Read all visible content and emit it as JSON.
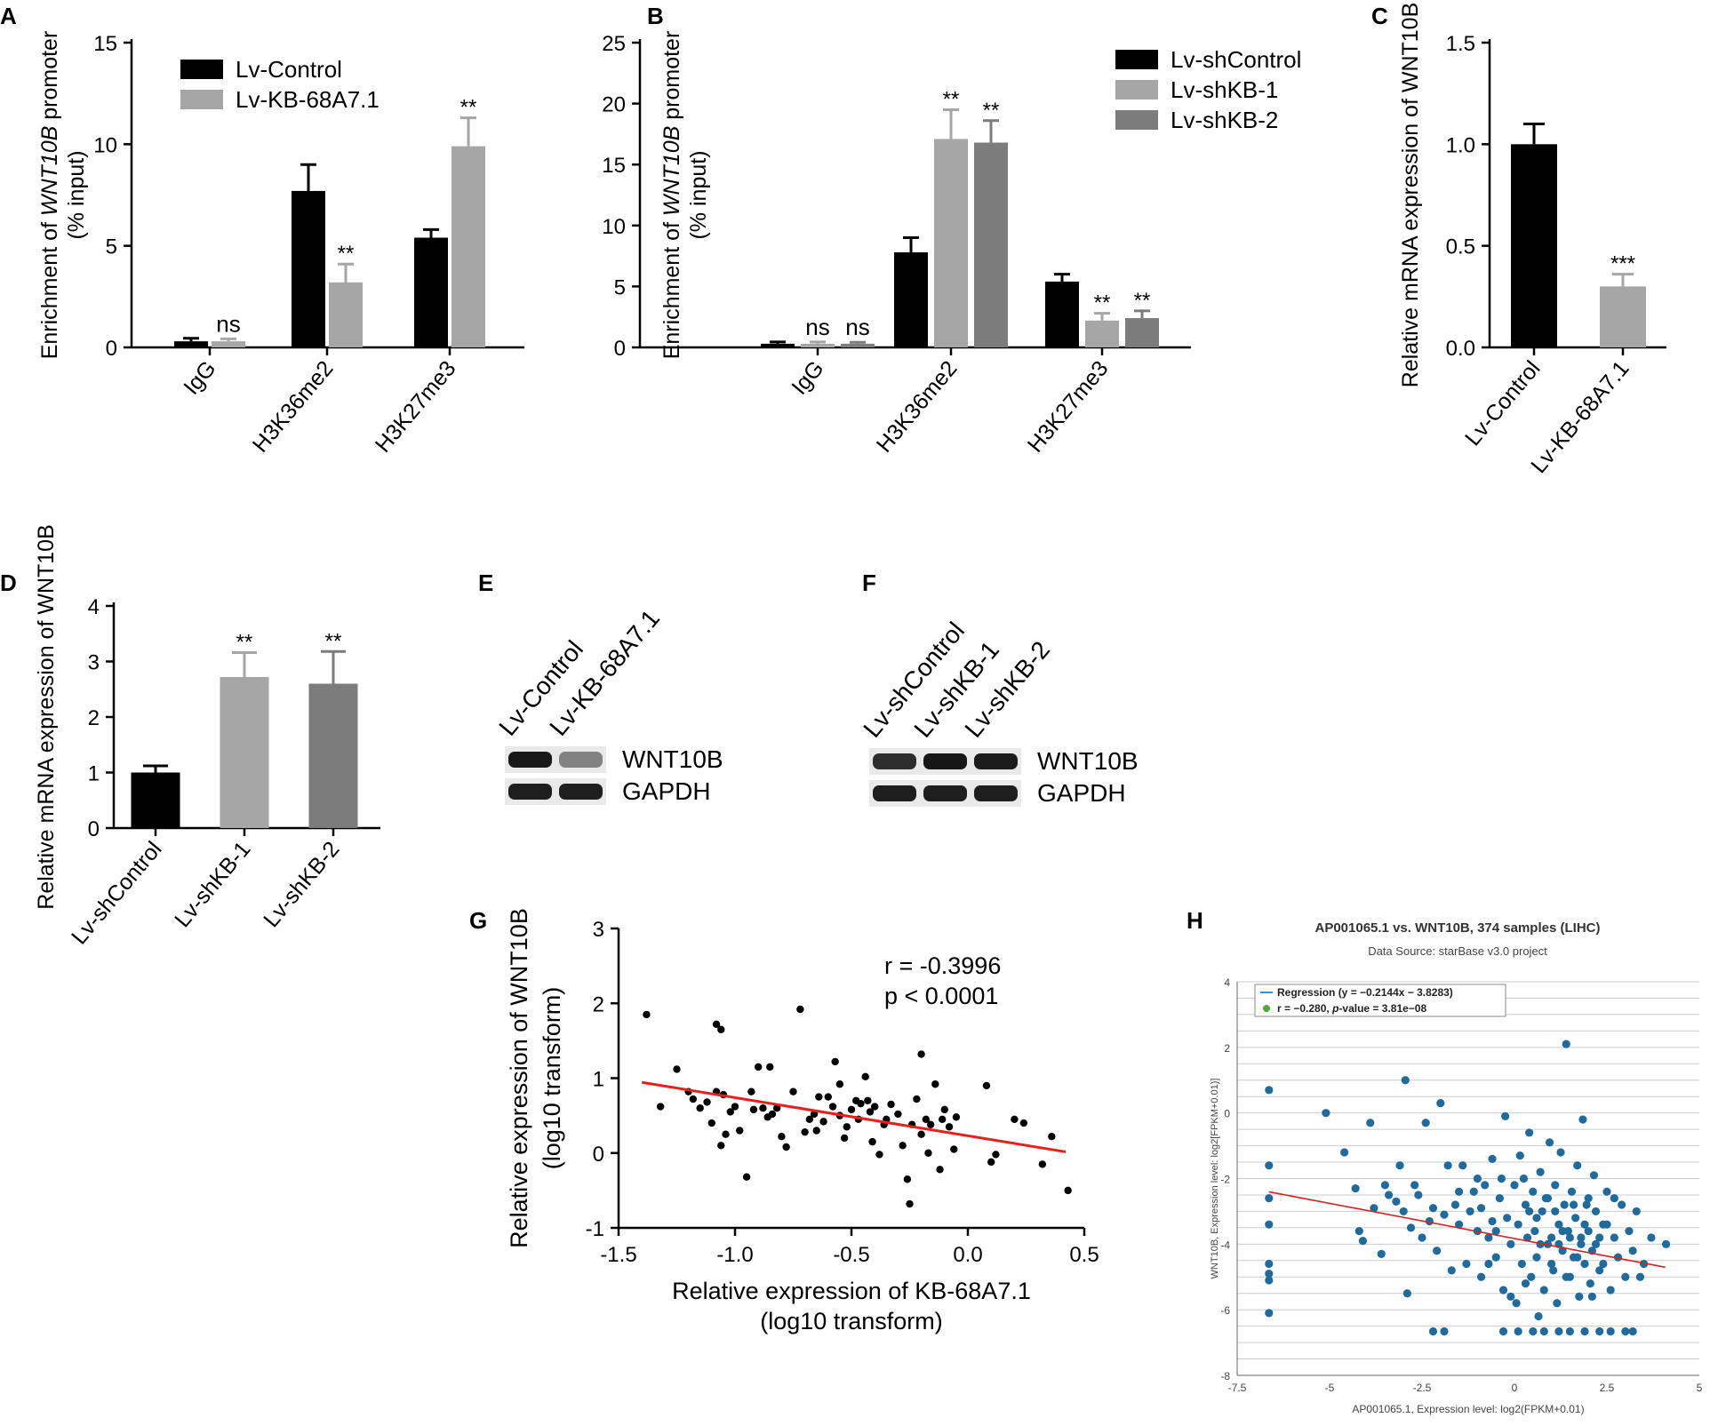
{
  "panels": {
    "A": "A",
    "B": "B",
    "C": "C",
    "D": "D",
    "E": "E",
    "F": "F",
    "G": "G",
    "H": "H"
  },
  "colors": {
    "black": "#000000",
    "light_gray": "#a6a6a6",
    "mid_gray": "#7c7c7c",
    "red": "#e8201a",
    "blue_dot": "#1f6b9e",
    "reg_line": "#d62220",
    "legend_blue": "#3a8fd6",
    "legend_green": "#4cae32",
    "h_grid": "#c9ccd2",
    "h_bg": "#ffffff"
  },
  "chart_data": [
    {
      "id": "A",
      "type": "bar",
      "ylabel_pre": "Enrichment of ",
      "ylabel_italic": "WNT10B",
      "ylabel_post": " promoter",
      "ylabel2": "(% input)",
      "yticks": [
        "0",
        "5",
        "10",
        "15"
      ],
      "ylim": [
        0,
        15
      ],
      "categories": [
        "IgG",
        "H3K36me2",
        "H3K27me3"
      ],
      "series": [
        {
          "name": "Lv-Control",
          "color": "#000000",
          "values": [
            0.3,
            7.7,
            5.4
          ],
          "errors": [
            0.15,
            1.3,
            0.4
          ],
          "labels": [
            "",
            "",
            ""
          ]
        },
        {
          "name": "Lv-KB-68A7.1",
          "color": "#a6a6a6",
          "values": [
            0.3,
            3.2,
            9.9
          ],
          "errors": [
            0.12,
            0.9,
            1.4
          ],
          "labels": [
            "ns",
            "**",
            "**"
          ]
        }
      ]
    },
    {
      "id": "B",
      "type": "bar",
      "ylabel_pre": "Enrichment of ",
      "ylabel_italic": "WNT10B",
      "ylabel_post": " promoter",
      "ylabel2": "(% input)",
      "yticks": [
        "0",
        "5",
        "10",
        "15",
        "20",
        "25"
      ],
      "ylim": [
        0,
        25
      ],
      "categories": [
        "IgG",
        "H3K36me2",
        "H3K27me3"
      ],
      "series": [
        {
          "name": "Lv-shControl",
          "color": "#000000",
          "values": [
            0.3,
            7.8,
            5.4
          ],
          "errors": [
            0.15,
            1.2,
            0.6
          ],
          "labels": [
            "",
            "",
            ""
          ]
        },
        {
          "name": "Lv-shKB-1",
          "color": "#a6a6a6",
          "values": [
            0.3,
            17.1,
            2.2
          ],
          "errors": [
            0.15,
            2.4,
            0.6
          ],
          "labels": [
            "ns",
            "**",
            "**"
          ]
        },
        {
          "name": "Lv-shKB-2",
          "color": "#7c7c7c",
          "values": [
            0.3,
            16.8,
            2.4
          ],
          "errors": [
            0.12,
            1.8,
            0.6
          ],
          "labels": [
            "ns",
            "**",
            "**"
          ]
        }
      ]
    },
    {
      "id": "C",
      "type": "bar",
      "ylabel": "Relative mRNA expression of WNT10B",
      "yticks": [
        "0.0",
        "0.5",
        "1.0",
        "1.5"
      ],
      "ylim": [
        0,
        1.5
      ],
      "categories": [
        "Lv-Control",
        "Lv-KB-68A7.1"
      ],
      "values": [
        1.0,
        0.3
      ],
      "errors": [
        0.1,
        0.06
      ],
      "colors": [
        "#000000",
        "#a6a6a6"
      ],
      "labels": [
        "",
        "***"
      ]
    },
    {
      "id": "D",
      "type": "bar",
      "ylabel": "Relative mRNA expression of WNT10B",
      "yticks": [
        "0",
        "1",
        "2",
        "3",
        "4"
      ],
      "ylim": [
        0,
        4
      ],
      "categories": [
        "Lv-shControl",
        "Lv-shKB-1",
        "Lv-shKB-2"
      ],
      "values": [
        1.0,
        2.72,
        2.6
      ],
      "errors": [
        0.12,
        0.44,
        0.58
      ],
      "colors": [
        "#000000",
        "#a6a6a6",
        "#7c7c7c"
      ],
      "labels": [
        "",
        "**",
        "**"
      ]
    },
    {
      "id": "G",
      "type": "scatter",
      "xlabel": "Relative expression of KB-68A7.1",
      "xlabel2": "(log10 transform)",
      "ylabel": "Relative expression of WNT10B",
      "ylabel2": "(log10 transform)",
      "xticks": [
        "-1.5",
        "-1.0",
        "-0.5",
        "0.0",
        "0.5"
      ],
      "xlim": [
        -1.5,
        0.5
      ],
      "yticks": [
        "-1",
        "0",
        "1",
        "2",
        "3"
      ],
      "ylim": [
        -1,
        3
      ],
      "annotation1": "r = -0.3996",
      "annotation2": "p < 0.0001",
      "regression": {
        "slope": -0.51,
        "intercept": 0.23,
        "x_range": [
          -1.4,
          0.42
        ]
      },
      "points": [
        [
          -1.38,
          1.85
        ],
        [
          -1.32,
          0.62
        ],
        [
          -1.25,
          1.12
        ],
        [
          -1.2,
          0.82
        ],
        [
          -1.18,
          0.72
        ],
        [
          -1.15,
          0.6
        ],
        [
          -1.12,
          0.68
        ],
        [
          -1.1,
          0.4
        ],
        [
          -1.08,
          1.72
        ],
        [
          -1.08,
          0.82
        ],
        [
          -1.06,
          1.65
        ],
        [
          -1.06,
          0.1
        ],
        [
          -1.05,
          0.78
        ],
        [
          -1.04,
          0.25
        ],
        [
          -1.02,
          0.55
        ],
        [
          -1.0,
          0.62
        ],
        [
          -0.98,
          0.3
        ],
        [
          -0.95,
          -0.32
        ],
        [
          -0.93,
          0.82
        ],
        [
          -0.92,
          0.58
        ],
        [
          -0.9,
          1.15
        ],
        [
          -0.88,
          0.6
        ],
        [
          -0.86,
          0.48
        ],
        [
          -0.85,
          1.15
        ],
        [
          -0.84,
          0.52
        ],
        [
          -0.82,
          0.6
        ],
        [
          -0.8,
          0.22
        ],
        [
          -0.78,
          0.08
        ],
        [
          -0.75,
          0.82
        ],
        [
          -0.72,
          1.92
        ],
        [
          -0.7,
          0.28
        ],
        [
          -0.68,
          0.45
        ],
        [
          -0.66,
          0.52
        ],
        [
          -0.65,
          0.3
        ],
        [
          -0.64,
          0.75
        ],
        [
          -0.62,
          0.42
        ],
        [
          -0.6,
          0.75
        ],
        [
          -0.58,
          0.62
        ],
        [
          -0.57,
          1.22
        ],
        [
          -0.55,
          0.92
        ],
        [
          -0.55,
          0.5
        ],
        [
          -0.53,
          0.2
        ],
        [
          -0.52,
          0.35
        ],
        [
          -0.5,
          0.58
        ],
        [
          -0.48,
          0.7
        ],
        [
          -0.47,
          0.45
        ],
        [
          -0.46,
          0.66
        ],
        [
          -0.44,
          1.02
        ],
        [
          -0.43,
          0.7
        ],
        [
          -0.42,
          0.55
        ],
        [
          -0.41,
          0.15
        ],
        [
          -0.4,
          0.62
        ],
        [
          -0.38,
          -0.02
        ],
        [
          -0.36,
          0.38
        ],
        [
          -0.35,
          0.45
        ],
        [
          -0.33,
          0.65
        ],
        [
          -0.3,
          0.52
        ],
        [
          -0.28,
          0.1
        ],
        [
          -0.26,
          -0.35
        ],
        [
          -0.25,
          -0.68
        ],
        [
          -0.24,
          0.38
        ],
        [
          -0.22,
          0.72
        ],
        [
          -0.2,
          1.32
        ],
        [
          -0.2,
          0.25
        ],
        [
          -0.18,
          0.45
        ],
        [
          -0.17,
          0.0
        ],
        [
          -0.16,
          0.38
        ],
        [
          -0.14,
          0.92
        ],
        [
          -0.12,
          -0.22
        ],
        [
          -0.11,
          0.45
        ],
        [
          -0.1,
          0.58
        ],
        [
          -0.08,
          0.35
        ],
        [
          -0.06,
          0.05
        ],
        [
          -0.05,
          0.48
        ],
        [
          0.08,
          0.9
        ],
        [
          0.1,
          -0.12
        ],
        [
          0.12,
          -0.02
        ],
        [
          0.2,
          0.45
        ],
        [
          0.24,
          0.4
        ],
        [
          0.32,
          -0.15
        ],
        [
          0.36,
          0.22
        ],
        [
          0.43,
          -0.5
        ]
      ]
    },
    {
      "id": "H",
      "type": "scatter",
      "title": "AP001065.1 vs. WNT10B, 374 samples (LIHC)",
      "subtitle": "Data Source: starBase v3.0 project",
      "xlabel": "AP001065.1, Expression level: log2(FPKM+0.01)",
      "ylabel": "WNT10B, Expression level: log2[FPKM+0.01)]",
      "xticks": [
        "-7.5",
        "-5",
        "-2.5",
        "0",
        "2.5",
        "5"
      ],
      "xlim": [
        -7.5,
        5
      ],
      "yticks": [
        "-8",
        "-6",
        "-4",
        "-2",
        "0",
        "2",
        "4"
      ],
      "ylim": [
        -8,
        4
      ],
      "legend_line": "Regression (y = −0.2144x − 3.8283)",
      "legend_dot_pre": "r = −0.280, ",
      "legend_dot_italic": "p",
      "legend_dot_post": "-value = 3.81e−08",
      "regression": {
        "slope": -0.2144,
        "intercept": -3.8283,
        "x_range": [
          -6.64,
          4.08
        ]
      },
      "points": [
        [
          -6.64,
          0.7
        ],
        [
          -6.64,
          -1.6
        ],
        [
          -6.64,
          -2.6
        ],
        [
          -6.64,
          -3.4
        ],
        [
          -6.64,
          -4.6
        ],
        [
          -6.64,
          -4.9
        ],
        [
          -6.64,
          -5.1
        ],
        [
          -6.64,
          -6.1
        ],
        [
          -5.1,
          0.0
        ],
        [
          -4.6,
          -1.2
        ],
        [
          -4.3,
          -2.3
        ],
        [
          -4.2,
          -3.6
        ],
        [
          -4.1,
          -3.9
        ],
        [
          -3.9,
          -0.3
        ],
        [
          -3.8,
          -2.9
        ],
        [
          -3.6,
          -4.3
        ],
        [
          -3.5,
          -2.2
        ],
        [
          -3.4,
          -2.5
        ],
        [
          -3.2,
          -2.7
        ],
        [
          -3.1,
          -1.6
        ],
        [
          -3.0,
          -3.0
        ],
        [
          -2.95,
          1.0
        ],
        [
          -2.9,
          -5.5
        ],
        [
          -2.8,
          -3.5
        ],
        [
          -2.7,
          -2.2
        ],
        [
          -2.6,
          -2.5
        ],
        [
          -2.5,
          -3.8
        ],
        [
          -2.4,
          -0.3
        ],
        [
          -2.3,
          -3.3
        ],
        [
          -2.2,
          -2.9
        ],
        [
          -2.1,
          -4.2
        ],
        [
          -2.0,
          0.3
        ],
        [
          -1.9,
          -3.1
        ],
        [
          -1.8,
          -1.6
        ],
        [
          -1.7,
          -4.8
        ],
        [
          -1.6,
          -2.8
        ],
        [
          -1.5,
          -3.4
        ],
        [
          -1.4,
          -1.6
        ],
        [
          -1.3,
          -4.6
        ],
        [
          -1.2,
          -3.0
        ],
        [
          -1.1,
          -2.4
        ],
        [
          -1.0,
          -3.6
        ],
        [
          -0.9,
          -5.0
        ],
        [
          -0.8,
          -2.2
        ],
        [
          -0.7,
          -3.8
        ],
        [
          -0.6,
          -1.4
        ],
        [
          -0.5,
          -4.4
        ],
        [
          -0.4,
          -2.6
        ],
        [
          -0.3,
          -5.4
        ],
        [
          -0.25,
          -0.1
        ],
        [
          -0.2,
          -3.2
        ],
        [
          -0.1,
          -4.0
        ],
        [
          0.0,
          -2.2
        ],
        [
          0.05,
          -5.8
        ],
        [
          0.1,
          -3.4
        ],
        [
          0.15,
          -1.3
        ],
        [
          0.2,
          -4.6
        ],
        [
          0.3,
          -2.8
        ],
        [
          0.35,
          -3.8
        ],
        [
          0.4,
          -0.6
        ],
        [
          0.45,
          -5.0
        ],
        [
          0.5,
          -2.4
        ],
        [
          0.55,
          -3.6
        ],
        [
          0.6,
          -4.4
        ],
        [
          0.65,
          -6.2
        ],
        [
          0.7,
          -1.8
        ],
        [
          0.75,
          -3.0
        ],
        [
          0.8,
          -5.4
        ],
        [
          0.85,
          -2.6
        ],
        [
          0.9,
          -4.0
        ],
        [
          0.95,
          -0.9
        ],
        [
          1.0,
          -3.8
        ],
        [
          1.05,
          -4.8
        ],
        [
          1.1,
          -2.2
        ],
        [
          1.15,
          -5.8
        ],
        [
          1.2,
          -3.4
        ],
        [
          1.25,
          -1.2
        ],
        [
          1.3,
          -4.2
        ],
        [
          1.35,
          -2.8
        ],
        [
          1.4,
          2.1
        ],
        [
          1.45,
          -3.6
        ],
        [
          1.5,
          -5.0
        ],
        [
          1.55,
          -2.4
        ],
        [
          1.6,
          -4.4
        ],
        [
          1.65,
          -3.2
        ],
        [
          1.7,
          -1.6
        ],
        [
          1.75,
          -5.6
        ],
        [
          1.8,
          -3.8
        ],
        [
          1.85,
          -0.2
        ],
        [
          1.9,
          -4.6
        ],
        [
          1.95,
          -2.8
        ],
        [
          2.0,
          -3.6
        ],
        [
          2.05,
          -5.2
        ],
        [
          2.1,
          -4.2
        ],
        [
          2.15,
          -1.9
        ],
        [
          2.2,
          -3.0
        ],
        [
          2.3,
          -4.8
        ],
        [
          2.4,
          -3.4
        ],
        [
          2.5,
          -2.4
        ],
        [
          2.6,
          -5.4
        ],
        [
          2.7,
          -3.8
        ],
        [
          2.8,
          -4.4
        ],
        [
          2.9,
          -2.8
        ],
        [
          3.0,
          -5.0
        ],
        [
          3.1,
          -3.6
        ],
        [
          3.2,
          -4.2
        ],
        [
          3.3,
          -3.0
        ],
        [
          3.5,
          -4.6
        ],
        [
          3.7,
          -3.8
        ],
        [
          4.1,
          -4.0
        ],
        [
          -2.2,
          -6.66
        ],
        [
          -1.9,
          -6.66
        ],
        [
          -0.3,
          -6.66
        ],
        [
          0.1,
          -6.66
        ],
        [
          0.5,
          -6.66
        ],
        [
          0.8,
          -6.66
        ],
        [
          1.2,
          -6.66
        ],
        [
          1.5,
          -6.66
        ],
        [
          1.9,
          -6.66
        ],
        [
          2.3,
          -6.66
        ],
        [
          2.6,
          -6.66
        ],
        [
          3.0,
          -6.66
        ],
        [
          3.2,
          -6.66
        ],
        [
          -0.9,
          -2.9
        ],
        [
          -0.6,
          -3.3
        ],
        [
          -0.35,
          -2.0
        ],
        [
          0.25,
          -2.0
        ],
        [
          0.6,
          -3.2
        ],
        [
          0.9,
          -2.6
        ],
        [
          1.1,
          -3.0
        ],
        [
          1.3,
          -3.6
        ],
        [
          1.6,
          -2.8
        ],
        [
          1.8,
          -4.0
        ],
        [
          2.0,
          -2.6
        ],
        [
          2.2,
          -4.0
        ],
        [
          2.5,
          -3.4
        ],
        [
          0.7,
          -4.0
        ],
        [
          1.0,
          -4.6
        ],
        [
          1.4,
          -5.0
        ],
        [
          1.7,
          -4.4
        ],
        [
          2.1,
          -5.6
        ],
        [
          2.4,
          -4.6
        ],
        [
          0.3,
          -5.2
        ],
        [
          -0.1,
          -5.6
        ],
        [
          -0.5,
          -3.6
        ],
        [
          -1.5,
          -2.4
        ],
        [
          -1.0,
          -2.0
        ],
        [
          -0.7,
          -4.6
        ],
        [
          0.4,
          -3.0
        ],
        [
          1.2,
          -4.0
        ],
        [
          1.5,
          -3.8
        ],
        [
          1.9,
          -3.4
        ],
        [
          2.3,
          -3.8
        ],
        [
          2.7,
          -2.6
        ],
        [
          3.4,
          -5.0
        ]
      ]
    }
  ],
  "blots": {
    "E": {
      "lanes": [
        "Lv-Control",
        "Lv-KB-68A7.1"
      ],
      "rows": [
        "WNT10B",
        "GAPDH"
      ]
    },
    "F": {
      "lanes": [
        "Lv-shControl",
        "Lv-shKB-1",
        "Lv-shKB-2"
      ],
      "rows": [
        "WNT10B",
        "GAPDH"
      ]
    }
  }
}
